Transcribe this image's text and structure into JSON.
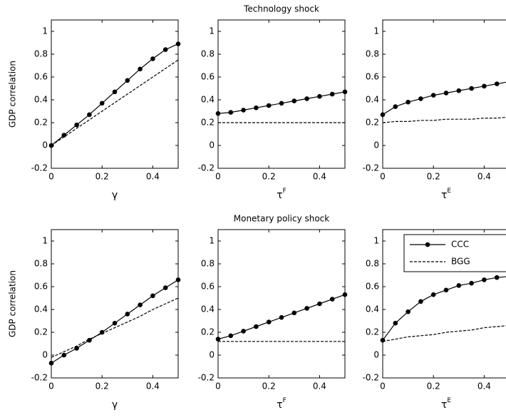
{
  "chart_data": [
    {
      "type": "line",
      "y_label": "GDP correlation",
      "x_label": "γ",
      "x": [
        0,
        0.05,
        0.1,
        0.15,
        0.2,
        0.25,
        0.3,
        0.35,
        0.4,
        0.45,
        0.5
      ],
      "series": [
        {
          "color": "#000000",
          "linestyle": "solid",
          "marker": "o",
          "values": [
            0,
            0.09,
            0.18,
            0.27,
            0.37,
            0.47,
            0.57,
            0.67,
            0.76,
            0.84,
            0.89
          ]
        },
        {
          "color": "#000000",
          "linestyle": "dashed",
          "marker": null,
          "values": [
            0,
            0.075,
            0.15,
            0.225,
            0.3,
            0.375,
            0.45,
            0.525,
            0.6,
            0.675,
            0.75
          ]
        }
      ],
      "xlim": [
        0,
        0.5
      ],
      "xticks": [
        0,
        0.2,
        0.4
      ],
      "ylim": [
        -0.2,
        1.1
      ],
      "yticks": [
        -0.2,
        0,
        0.2,
        0.4,
        0.6,
        0.8,
        1
      ]
    },
    {
      "type": "line",
      "title": "Technology shock",
      "x_label": "τ",
      "x_label_sup": "F",
      "x": [
        0,
        0.05,
        0.1,
        0.15,
        0.2,
        0.25,
        0.3,
        0.35,
        0.4,
        0.45,
        0.5
      ],
      "series": [
        {
          "color": "#000000",
          "linestyle": "solid",
          "marker": "o",
          "values": [
            0.28,
            0.29,
            0.31,
            0.33,
            0.35,
            0.37,
            0.39,
            0.41,
            0.43,
            0.45,
            0.47
          ]
        },
        {
          "color": "#000000",
          "linestyle": "dashed",
          "marker": null,
          "values": [
            0.2,
            0.2,
            0.2,
            0.2,
            0.2,
            0.2,
            0.2,
            0.2,
            0.2,
            0.2,
            0.2
          ]
        }
      ],
      "xlim": [
        0,
        0.5
      ],
      "xticks": [
        0,
        0.2,
        0.4
      ],
      "ylim": [
        -0.2,
        1.1
      ],
      "yticks": [
        -0.2,
        0,
        0.2,
        0.4,
        0.6,
        0.8,
        1
      ]
    },
    {
      "type": "line",
      "x_label": "τ",
      "x_label_sup": "E",
      "x": [
        0,
        0.05,
        0.1,
        0.15,
        0.2,
        0.25,
        0.3,
        0.35,
        0.4,
        0.45,
        0.5
      ],
      "series": [
        {
          "color": "#000000",
          "linestyle": "solid",
          "marker": "o",
          "values": [
            0.27,
            0.34,
            0.38,
            0.41,
            0.44,
            0.46,
            0.48,
            0.5,
            0.52,
            0.54,
            0.56
          ]
        },
        {
          "color": "#000000",
          "linestyle": "dashed",
          "marker": null,
          "values": [
            0.2,
            0.21,
            0.21,
            0.22,
            0.22,
            0.23,
            0.23,
            0.23,
            0.24,
            0.24,
            0.25
          ]
        }
      ],
      "xlim": [
        0,
        0.5
      ],
      "xticks": [
        0,
        0.2,
        0.4
      ],
      "ylim": [
        -0.2,
        1.1
      ],
      "yticks": [
        -0.2,
        0,
        0.2,
        0.4,
        0.6,
        0.8,
        1
      ]
    },
    {
      "type": "line",
      "y_label": "GDP correlation",
      "x_label": "γ",
      "x": [
        0,
        0.05,
        0.1,
        0.15,
        0.2,
        0.25,
        0.3,
        0.35,
        0.4,
        0.45,
        0.5
      ],
      "series": [
        {
          "color": "#000000",
          "linestyle": "solid",
          "marker": "o",
          "values": [
            -0.07,
            0,
            0.06,
            0.13,
            0.2,
            0.28,
            0.36,
            0.44,
            0.52,
            0.59,
            0.66
          ]
        },
        {
          "color": "#000000",
          "linestyle": "dashed",
          "marker": null,
          "values": [
            -0.02,
            0.03,
            0.08,
            0.14,
            0.19,
            0.24,
            0.29,
            0.34,
            0.4,
            0.45,
            0.5
          ]
        }
      ],
      "xlim": [
        0,
        0.5
      ],
      "xticks": [
        0,
        0.2,
        0.4
      ],
      "ylim": [
        -0.2,
        1.1
      ],
      "yticks": [
        -0.2,
        0,
        0.2,
        0.4,
        0.6,
        0.8,
        1
      ]
    },
    {
      "type": "line",
      "title": "Monetary policy shock",
      "x_label": "τ",
      "x_label_sup": "F",
      "x": [
        0,
        0.05,
        0.1,
        0.15,
        0.2,
        0.25,
        0.3,
        0.35,
        0.4,
        0.45,
        0.5
      ],
      "series": [
        {
          "color": "#000000",
          "linestyle": "solid",
          "marker": "o",
          "values": [
            0.14,
            0.17,
            0.21,
            0.25,
            0.29,
            0.33,
            0.37,
            0.41,
            0.45,
            0.49,
            0.53
          ]
        },
        {
          "color": "#000000",
          "linestyle": "dashed",
          "marker": null,
          "values": [
            0.12,
            0.12,
            0.12,
            0.12,
            0.12,
            0.12,
            0.12,
            0.12,
            0.12,
            0.12,
            0.12
          ]
        }
      ],
      "xlim": [
        0,
        0.5
      ],
      "xticks": [
        0,
        0.2,
        0.4
      ],
      "ylim": [
        -0.2,
        1.1
      ],
      "yticks": [
        -0.2,
        0,
        0.2,
        0.4,
        0.6,
        0.8,
        1
      ]
    },
    {
      "type": "line",
      "x_label": "τ",
      "x_label_sup": "E",
      "legend": "upper right",
      "x": [
        0,
        0.05,
        0.1,
        0.15,
        0.2,
        0.25,
        0.3,
        0.35,
        0.4,
        0.45,
        0.5
      ],
      "series": [
        {
          "name": "CCC",
          "color": "#000000",
          "linestyle": "solid",
          "marker": "o",
          "values": [
            0.13,
            0.28,
            0.38,
            0.47,
            0.53,
            0.57,
            0.61,
            0.63,
            0.66,
            0.68,
            0.69
          ]
        },
        {
          "name": "BGG",
          "color": "#000000",
          "linestyle": "dashed",
          "marker": null,
          "values": [
            0.12,
            0.14,
            0.16,
            0.17,
            0.18,
            0.2,
            0.21,
            0.22,
            0.24,
            0.25,
            0.26
          ]
        }
      ],
      "xlim": [
        0,
        0.5
      ],
      "xticks": [
        0,
        0.2,
        0.4
      ],
      "ylim": [
        -0.2,
        1.1
      ],
      "yticks": [
        -0.2,
        0,
        0.2,
        0.4,
        0.6,
        0.8,
        1
      ]
    }
  ]
}
